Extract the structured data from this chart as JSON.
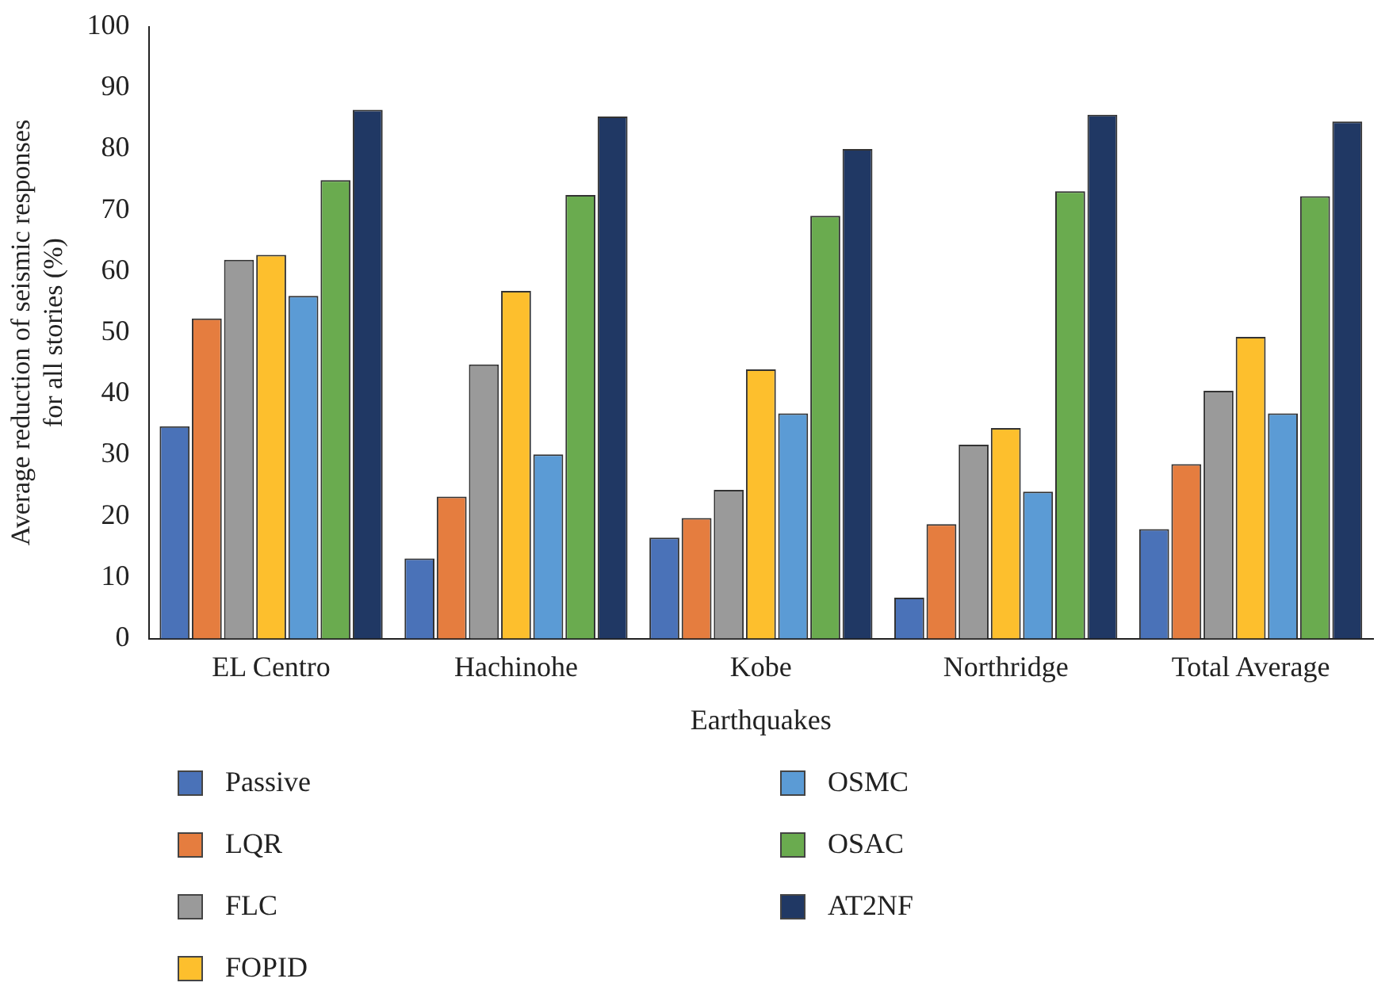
{
  "chart_data": {
    "type": "bar",
    "xlabel": "Earthquakes",
    "ylabel": "Average reduction of seismic responses\nfor all stories (%)",
    "categories": [
      "EL Centro",
      "Hachinohe",
      "Kobe",
      "Northridge",
      "Total Average"
    ],
    "series": [
      {
        "name": "Passive",
        "color": "#4a72b8",
        "values": [
          34.7,
          13.1,
          16.5,
          6.7,
          17.9
        ]
      },
      {
        "name": "LQR",
        "color": "#e57d3f",
        "values": [
          52.3,
          23.2,
          19.7,
          18.7,
          28.5
        ]
      },
      {
        "name": "FLC",
        "color": "#9a9a9a",
        "values": [
          61.9,
          44.8,
          24.3,
          31.7,
          40.5
        ]
      },
      {
        "name": "FOPID",
        "color": "#fdbf2d",
        "values": [
          62.7,
          56.8,
          44,
          34.4,
          49.3
        ]
      },
      {
        "name": "OSMC",
        "color": "#5b9bd5",
        "values": [
          56,
          30.1,
          36.8,
          24,
          36.8
        ]
      },
      {
        "name": "OSAC",
        "color": "#6aab4f",
        "values": [
          74.9,
          72.5,
          69.1,
          73.1,
          72.3
        ]
      },
      {
        "name": "AT2NF",
        "color": "#203864",
        "values": [
          86.4,
          85.3,
          80,
          85.6,
          84.5
        ]
      }
    ],
    "ylim": [
      0,
      100
    ],
    "yticks": [
      0,
      10,
      20,
      30,
      40,
      50,
      60,
      70,
      80,
      90,
      100
    ],
    "grid": false,
    "legend": "bottom"
  }
}
